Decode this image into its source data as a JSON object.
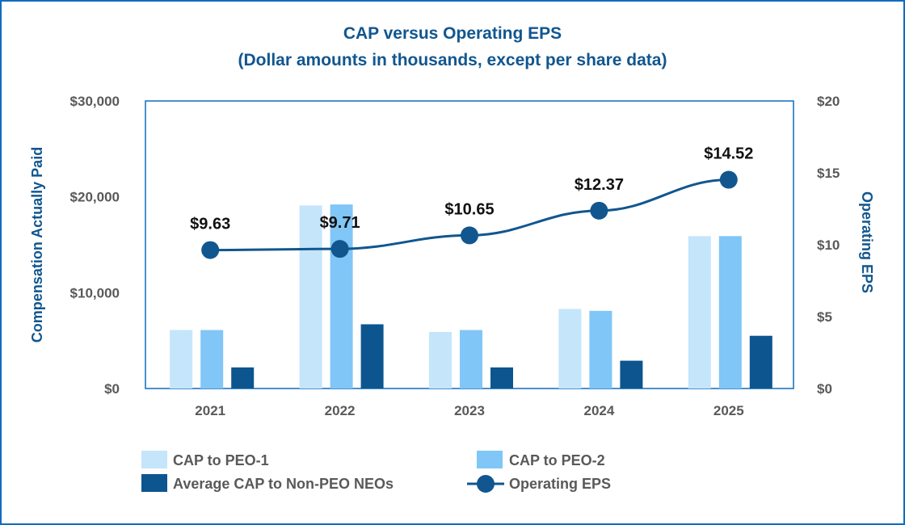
{
  "chart_data": {
    "type": "bar",
    "title": "CAP versus Operating EPS",
    "subtitle": "(Dollar amounts in thousands, except per share data)",
    "categories": [
      "2021",
      "2022",
      "2023",
      "2024",
      "2025"
    ],
    "series": [
      {
        "name": "CAP to PEO-1",
        "type": "bar",
        "axis": "left",
        "color": "#c5e5fb",
        "values": [
          6100,
          19100,
          5900,
          8300,
          15900
        ]
      },
      {
        "name": "CAP to PEO-2",
        "type": "bar",
        "axis": "left",
        "color": "#80c6f7",
        "values": [
          6100,
          19200,
          6100,
          8100,
          15900
        ]
      },
      {
        "name": "Average CAP to Non-PEO NEOs",
        "type": "bar",
        "axis": "left",
        "color": "#0d558e",
        "values": [
          2200,
          6700,
          2200,
          2900,
          5500
        ]
      },
      {
        "name": "Operating EPS",
        "type": "line",
        "axis": "right",
        "color": "#11568f",
        "values": [
          9.63,
          9.71,
          10.65,
          12.37,
          14.52
        ],
        "labels": [
          "$9.63",
          "$9.71",
          "$10.65",
          "$12.37",
          "$14.52"
        ]
      }
    ],
    "ylabel": "Compensation Actually Paid",
    "ylim": [
      0,
      30000
    ],
    "yticks": [
      0,
      10000,
      20000,
      30000
    ],
    "ytick_labels": [
      "$0",
      "$10,000",
      "$20,000",
      "$30,000"
    ],
    "y2label": "Operating EPS",
    "y2lim": [
      0,
      20
    ],
    "y2ticks": [
      0,
      5,
      10,
      15,
      20
    ],
    "y2tick_labels": [
      "$0",
      "$5",
      "$10",
      "$15",
      "$20"
    ],
    "legend": "bottom",
    "grid": false
  },
  "colors": {
    "title": "#11568f",
    "axis_title": "#11568f",
    "plot_border": "#0f6cbf",
    "tick_text": "#595959"
  }
}
